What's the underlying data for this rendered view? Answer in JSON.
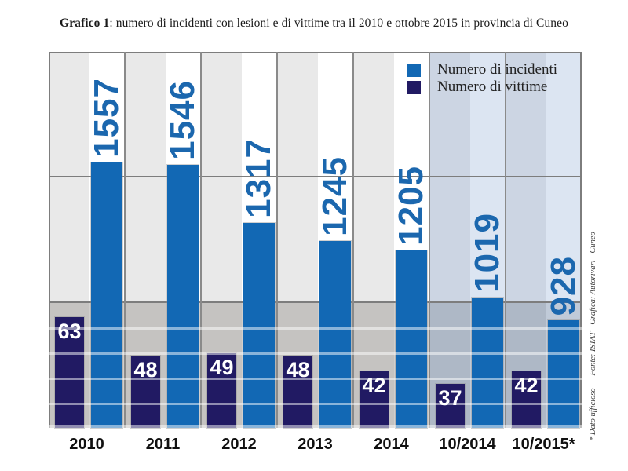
{
  "title": {
    "prefix": "Grafico 1",
    "rest": ": numero di incidenti con lesioni e di vittime tra il 2010 e ottobre 2015 in provincia di Cuneo"
  },
  "legend": [
    {
      "label": "Numero di incidenti",
      "color": "#1268b4"
    },
    {
      "label": "Numero di vittime",
      "color": "#211a63"
    }
  ],
  "source_note": "* Dato ufficioso  Fonte: ISTAT - Grafica: Autorivari - Cuneo",
  "chart_data": {
    "type": "bar",
    "categories": [
      "2010",
      "2011",
      "2012",
      "2013",
      "2014",
      "10/2014",
      "10/2015*"
    ],
    "series": [
      {
        "name": "Numero di incidenti",
        "color": "#1268b4",
        "values": [
          1557,
          1546,
          1317,
          1245,
          1205,
          1019,
          928
        ]
      },
      {
        "name": "Numero di vittime",
        "color": "#211a63",
        "values": [
          63,
          48,
          49,
          48,
          42,
          37,
          42
        ]
      }
    ],
    "data_labels": true,
    "incident_label_color": "#1b67ae",
    "victim_label_color": "#ffffff",
    "highlighted_categories": [
      "10/2014",
      "10/2015*"
    ],
    "legend_position": "top-right",
    "grid": "horizontal major + minor lines in lower band",
    "ylim_note": "axis truncated, bars cropped at bottom (no zero baseline shown)"
  },
  "colors": {
    "background": "#ffffff",
    "upper_stripe_gray": "#e9e9e9",
    "upper_stripe_light": "#ffffff",
    "band_stripe_gray": "#c5c3c1",
    "band_stripe_light": "#d1cfcd",
    "tint_upper_gray": "#ccd5e3",
    "tint_upper_light": "#dce5f2",
    "tint_band_gray": "#aeb8c6",
    "tint_band_light": "#c0cad8",
    "major_gridline": "#7d7d7d",
    "separator": "#8a8a8a",
    "minor_gridline": "rgba(255,255,255,0.5)"
  }
}
